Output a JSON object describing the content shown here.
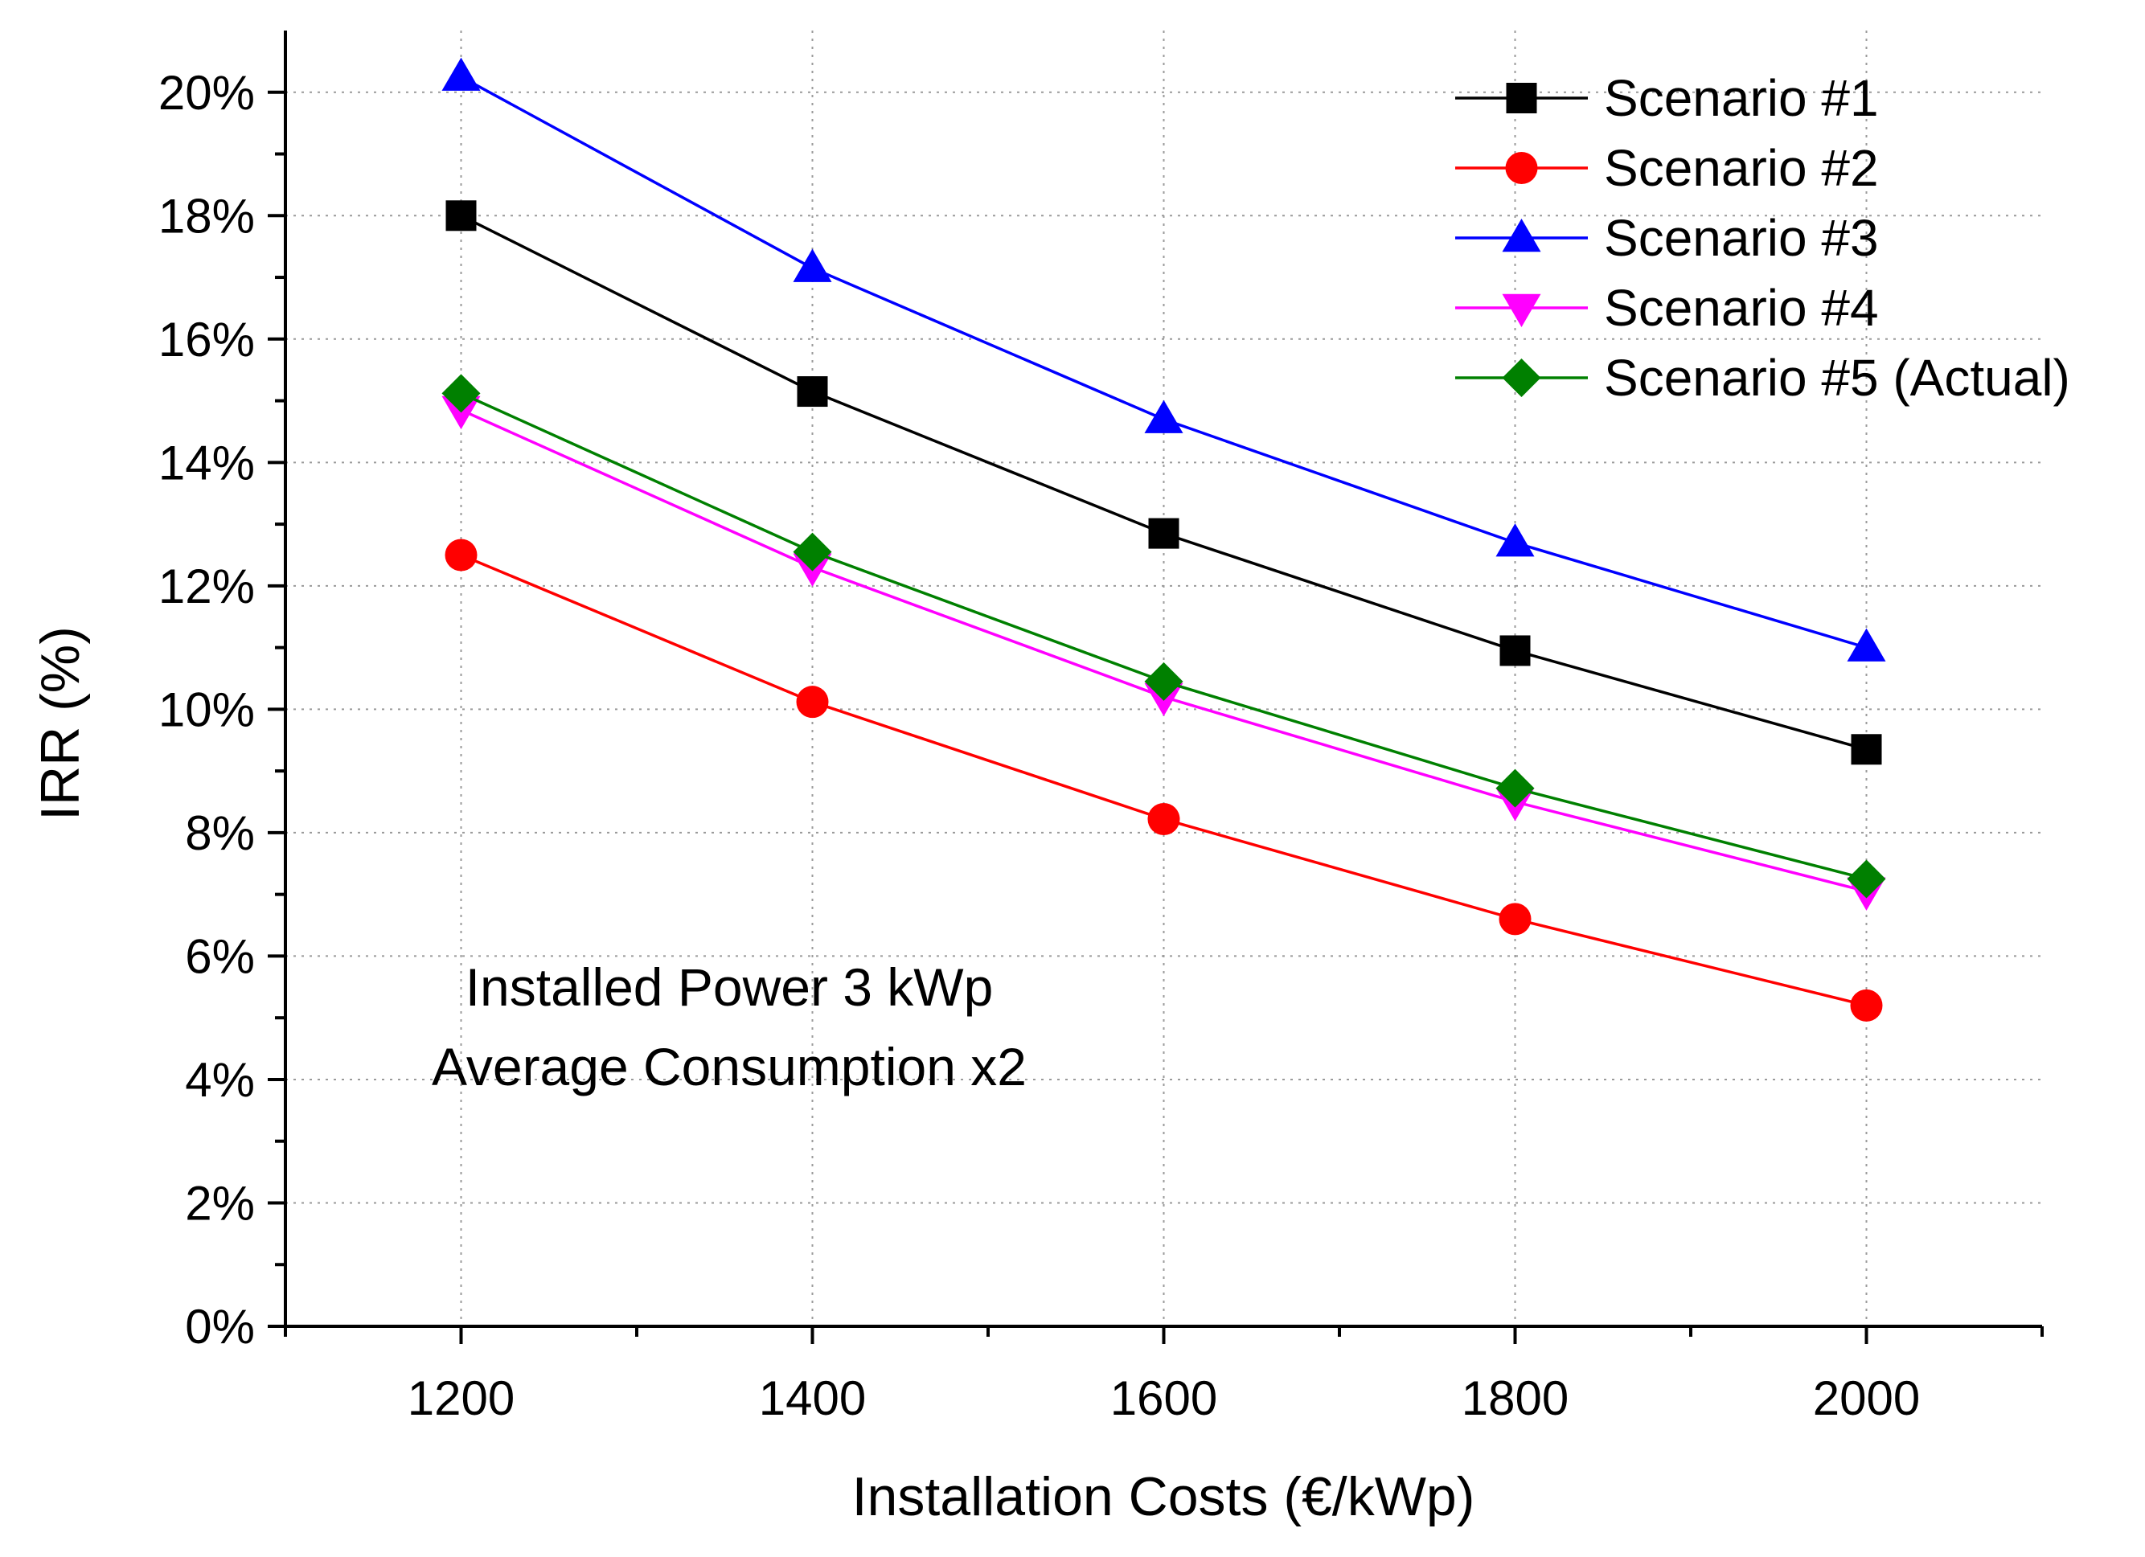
{
  "chart_data": {
    "type": "line",
    "title": "",
    "xlabel": "Installation Costs (€/kWp)",
    "ylabel": "IRR (%)",
    "x": [
      1200,
      1400,
      1600,
      1800,
      2000
    ],
    "xlim": [
      1100,
      2100
    ],
    "ylim": [
      0,
      21
    ],
    "x_ticks": [
      1200,
      1400,
      1600,
      1800,
      2000
    ],
    "y_ticks": [
      0,
      2,
      4,
      6,
      8,
      10,
      12,
      14,
      16,
      18,
      20
    ],
    "y_tick_format": "{v}%",
    "grid": "dotted",
    "legend_position": "top-right",
    "annotations": [
      "Installed Power 3 kWp",
      "Average Consumption x2"
    ],
    "series": [
      {
        "name": "Scenario #1",
        "values": [
          18.0,
          15.15,
          12.85,
          10.95,
          9.35
        ],
        "color": "#000000",
        "marker": "square"
      },
      {
        "name": "Scenario #2",
        "values": [
          12.5,
          10.12,
          8.22,
          6.6,
          5.2
        ],
        "color": "#ff0000",
        "marker": "circle"
      },
      {
        "name": "Scenario #3",
        "values": [
          20.25,
          17.15,
          14.7,
          12.7,
          11.0
        ],
        "color": "#0000ff",
        "marker": "triangle-up"
      },
      {
        "name": "Scenario #4",
        "values": [
          14.85,
          12.3,
          10.2,
          8.5,
          7.05
        ],
        "color": "#ff00ff",
        "marker": "triangle-down"
      },
      {
        "name": "Scenario #5 (Actual)",
        "values": [
          15.12,
          12.55,
          10.45,
          8.72,
          7.25
        ],
        "color": "#008000",
        "marker": "diamond"
      }
    ]
  }
}
